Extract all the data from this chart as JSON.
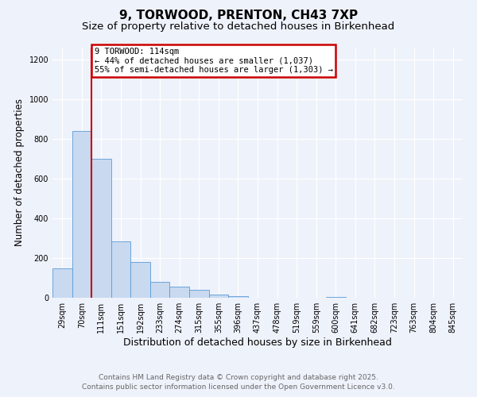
{
  "title": "9, TORWOOD, PRENTON, CH43 7XP",
  "subtitle": "Size of property relative to detached houses in Birkenhead",
  "xlabel": "Distribution of detached houses by size in Birkenhead",
  "ylabel": "Number of detached properties",
  "bar_labels": [
    "29sqm",
    "70sqm",
    "111sqm",
    "151sqm",
    "192sqm",
    "233sqm",
    "274sqm",
    "315sqm",
    "355sqm",
    "396sqm",
    "437sqm",
    "478sqm",
    "519sqm",
    "559sqm",
    "600sqm",
    "641sqm",
    "682sqm",
    "723sqm",
    "763sqm",
    "804sqm",
    "845sqm"
  ],
  "bar_values": [
    150,
    840,
    700,
    285,
    182,
    80,
    55,
    42,
    18,
    8,
    0,
    0,
    0,
    0,
    5,
    0,
    0,
    0,
    0,
    0,
    0
  ],
  "bar_color": "#c8d9f0",
  "bar_edge_color": "#5b9bd5",
  "vline_x_index": 2,
  "vline_color": "#cc0000",
  "annotation_title": "9 TORWOOD: 114sqm",
  "annotation_line1": "← 44% of detached houses are smaller (1,037)",
  "annotation_line2": "55% of semi-detached houses are larger (1,303) →",
  "annotation_box_color": "#cc0000",
  "ylim": [
    0,
    1260
  ],
  "yticks": [
    0,
    200,
    400,
    600,
    800,
    1000,
    1200
  ],
  "bg_color": "#eef2fb",
  "plot_bg_color": "#eef2fb",
  "grid_color": "#ffffff",
  "footer_line1": "Contains HM Land Registry data © Crown copyright and database right 2025.",
  "footer_line2": "Contains public sector information licensed under the Open Government Licence v3.0.",
  "title_fontsize": 11,
  "subtitle_fontsize": 9.5,
  "xlabel_fontsize": 9,
  "ylabel_fontsize": 8.5,
  "tick_fontsize": 7,
  "footer_fontsize": 6.5,
  "ann_fontsize": 7.5
}
